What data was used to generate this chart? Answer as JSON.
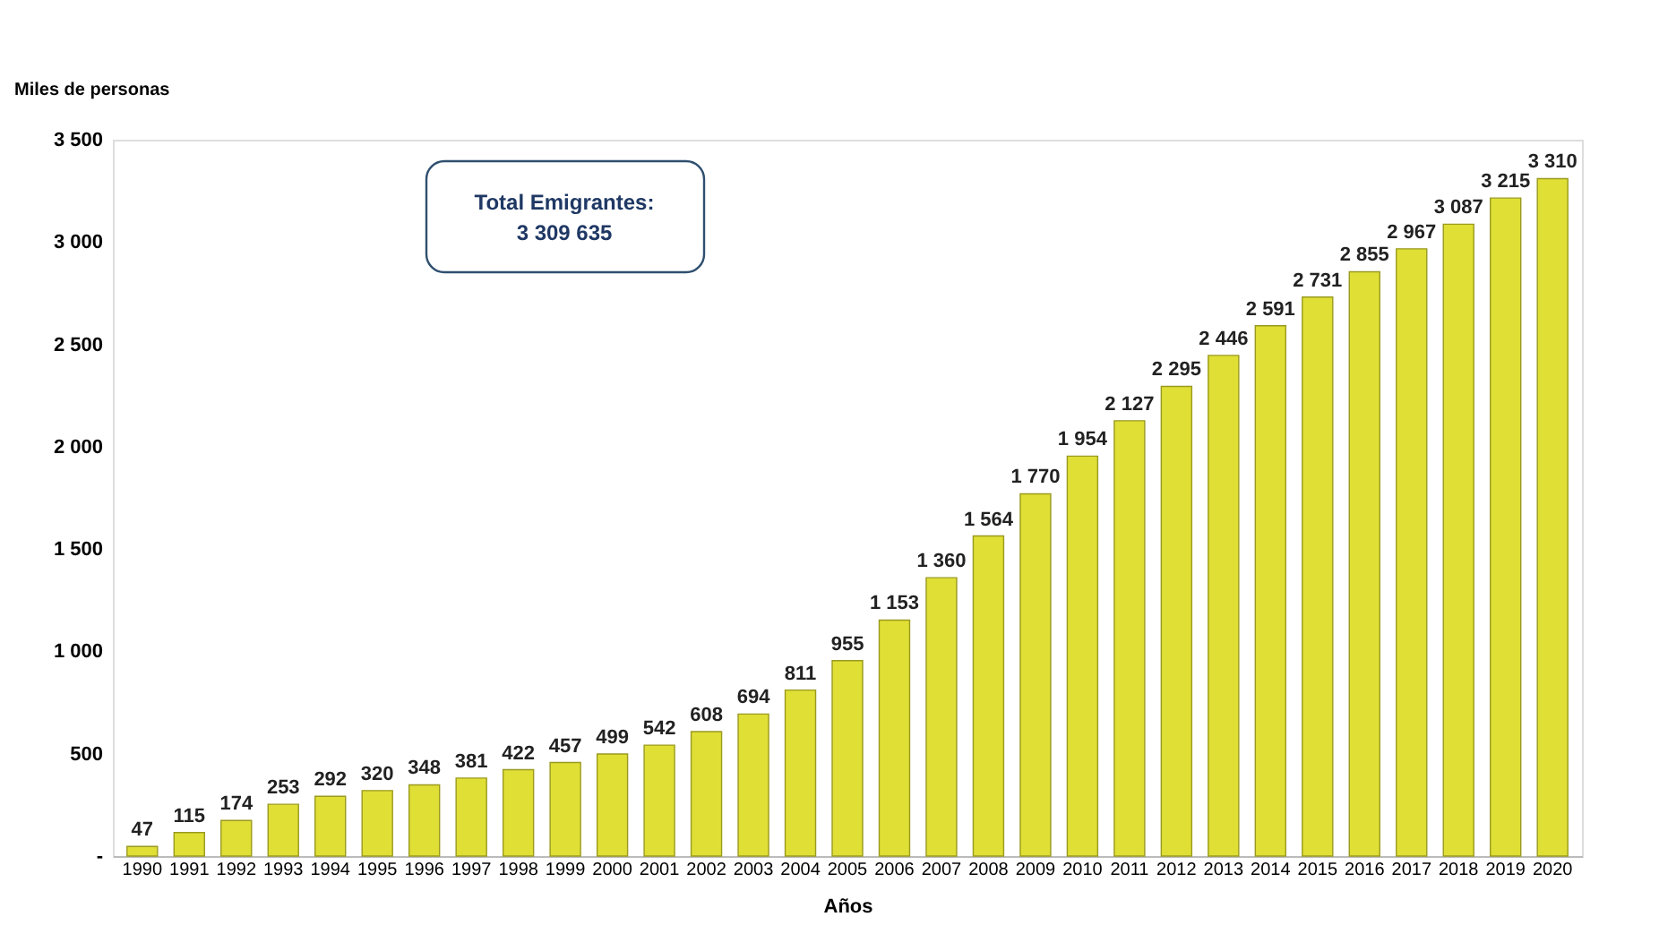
{
  "chart_data": {
    "type": "bar",
    "xlabel": "Años",
    "ylabel": "Miles de personas",
    "categories": [
      "1990",
      "1991",
      "1992",
      "1993",
      "1994",
      "1995",
      "1996",
      "1997",
      "1998",
      "1999",
      "2000",
      "2001",
      "2002",
      "2003",
      "2004",
      "2005",
      "2006",
      "2007",
      "2008",
      "2009",
      "2010",
      "2011",
      "2012",
      "2013",
      "2014",
      "2015",
      "2016",
      "2017",
      "2018",
      "2019",
      "2020"
    ],
    "values": [
      47,
      115,
      174,
      253,
      292,
      320,
      348,
      381,
      422,
      457,
      499,
      542,
      608,
      694,
      811,
      955,
      1153,
      1360,
      1564,
      1770,
      1954,
      2127,
      2295,
      2446,
      2591,
      2731,
      2855,
      2967,
      3087,
      3215,
      3310
    ],
    "value_labels": [
      "47",
      "115",
      "174",
      "253",
      "292",
      "320",
      "348",
      "381",
      "422",
      "457",
      "499",
      "542",
      "608",
      "694",
      "811",
      "955",
      "1 153",
      "1 360",
      "1 564",
      "1 770",
      "1 954",
      "2 127",
      "2 295",
      "2 446",
      "2 591",
      "2 731",
      "2 855",
      "2 967",
      "3 087",
      "3 215",
      "3 310"
    ],
    "color": "#dfdf36",
    "ylim": [
      0,
      3500
    ],
    "yticks": [
      {
        "value": 0,
        "label": "-"
      },
      500,
      {
        "value": 1000,
        "label": "1 000"
      },
      {
        "value": 1500,
        "label": "1 500"
      },
      {
        "value": 2000,
        "label": "2 000"
      },
      {
        "value": 2500,
        "label": "2 500"
      },
      {
        "value": 3000,
        "label": "3 000"
      },
      {
        "value": 3500,
        "label": "3 500"
      }
    ],
    "grid": false,
    "annotations": [
      "Total Emigrantes:\n3 309 635"
    ]
  }
}
